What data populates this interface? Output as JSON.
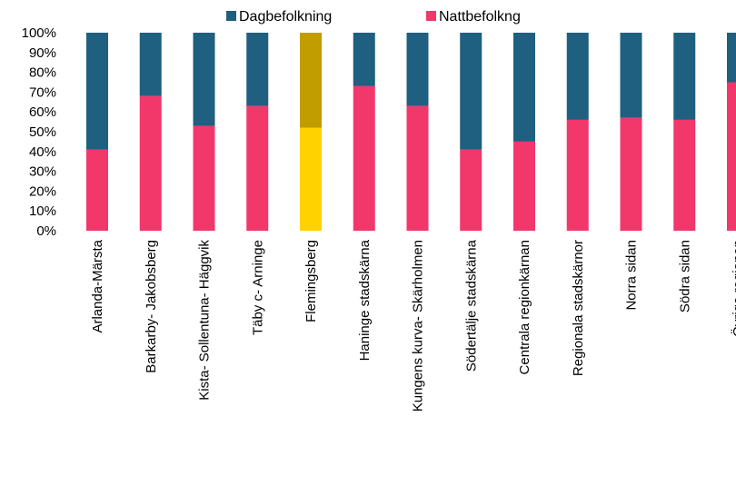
{
  "chart_data": {
    "type": "bar",
    "stacked": true,
    "percent_stacked": true,
    "categories": [
      "Arlanda-Märsta",
      "Barkarby- Jakobsberg",
      "Kista- Sollentuna- Häggvik",
      "Täby c- Arninge",
      "Flemingsberg",
      "Haninge stadskärna",
      "Kungens kurva- Skärholmen",
      "Södertälje stadskärna",
      "Centrala regionkärnan",
      "Regionala stadskärnor",
      "Norra sidan",
      "Södra sidan",
      "Övriga regionen"
    ],
    "series": [
      {
        "name": "Nattbefolkng",
        "color": "#f2376b",
        "values": [
          41,
          68,
          53,
          63,
          52,
          73,
          63,
          41,
          45,
          56,
          57,
          56,
          75
        ]
      },
      {
        "name": "Dagbefolkning",
        "color": "#1f5f7f",
        "values": [
          59,
          32,
          47,
          37,
          48,
          27,
          37,
          59,
          55,
          44,
          43,
          44,
          25
        ]
      }
    ],
    "highlight": {
      "category": "Flemingsberg",
      "colors": {
        "Nattbefolkng": "#ffd200",
        "Dagbefolkning": "#c29d00"
      }
    },
    "y_ticks": [
      "0%",
      "10%",
      "20%",
      "30%",
      "40%",
      "50%",
      "60%",
      "70%",
      "80%",
      "90%",
      "100%"
    ],
    "ylim": [
      0,
      100
    ],
    "legend": {
      "position": "top",
      "entries": [
        {
          "name": "Dagbefolkning",
          "color": "#1f5f7f"
        },
        {
          "name": "Nattbefolkng",
          "color": "#f2376b"
        }
      ]
    },
    "grid": false
  }
}
